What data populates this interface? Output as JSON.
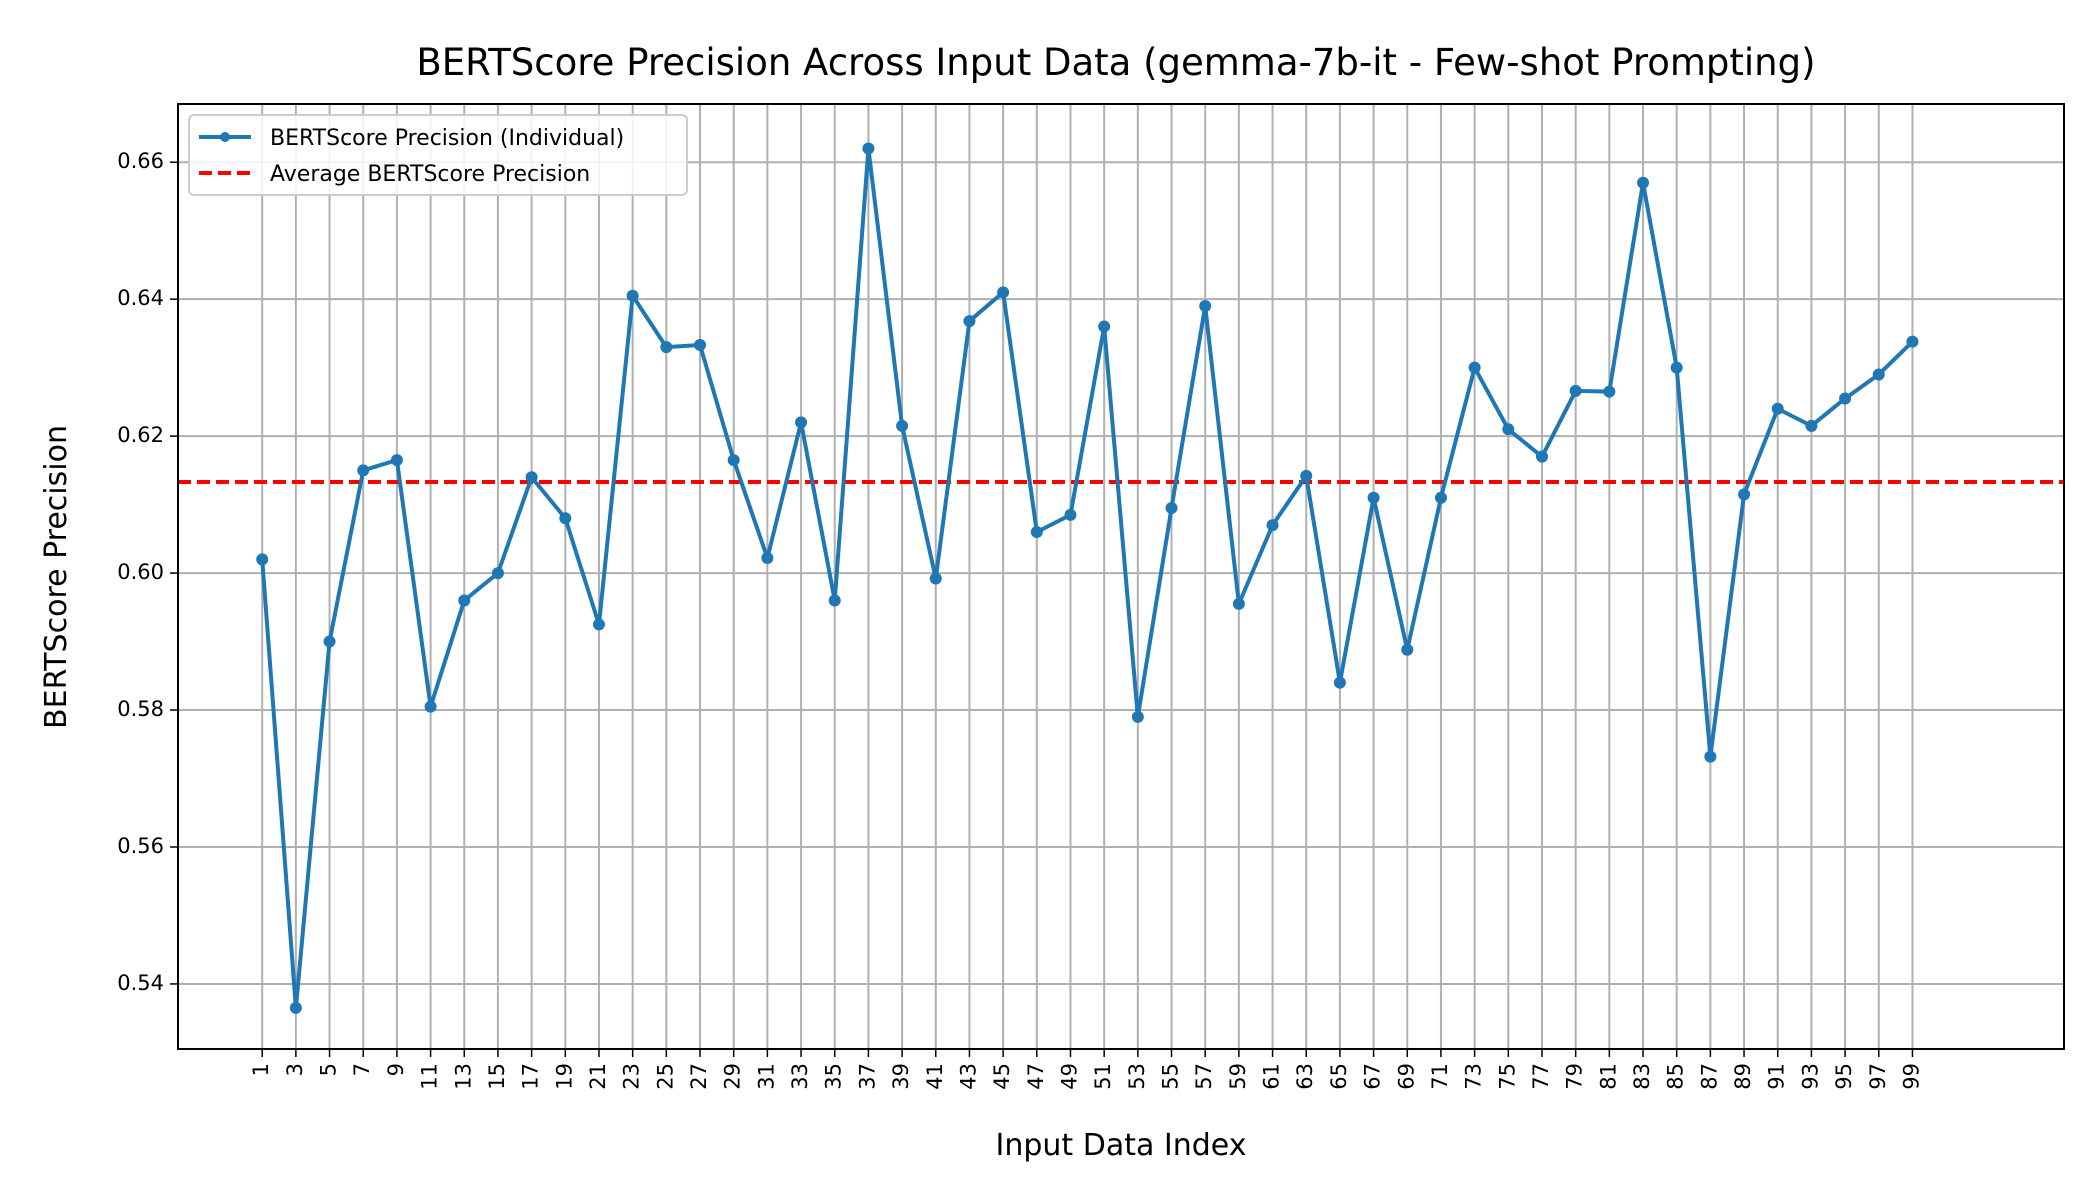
{
  "chart_data": {
    "type": "line",
    "title": "BERTScore Precision Across Input Data (gemma-7b-it - Few-shot Prompting)",
    "xlabel": "Input Data Index",
    "ylabel": "BERTScore Precision",
    "x": [
      1,
      3,
      5,
      7,
      9,
      11,
      13,
      15,
      17,
      19,
      21,
      23,
      25,
      27,
      29,
      31,
      33,
      35,
      37,
      39,
      41,
      43,
      45,
      47,
      49,
      51,
      53,
      55,
      57,
      59,
      61,
      63,
      65,
      67,
      69,
      71,
      73,
      75,
      77,
      79,
      81,
      83,
      85,
      87,
      89,
      91,
      93,
      95,
      97,
      99
    ],
    "xticks": [
      "1",
      "3",
      "5",
      "7",
      "9",
      "11",
      "13",
      "15",
      "17",
      "19",
      "21",
      "23",
      "25",
      "27",
      "29",
      "31",
      "33",
      "35",
      "37",
      "39",
      "41",
      "43",
      "45",
      "47",
      "49",
      "51",
      "53",
      "55",
      "57",
      "59",
      "61",
      "63",
      "65",
      "67",
      "69",
      "71",
      "73",
      "75",
      "77",
      "79",
      "81",
      "83",
      "85",
      "87",
      "89",
      "91",
      "93",
      "95",
      "97",
      "99"
    ],
    "yticks": [
      "0.54",
      "0.56",
      "0.58",
      "0.60",
      "0.62",
      "0.64",
      "0.66"
    ],
    "xlim": [
      -4,
      108
    ],
    "ylim": [
      0.5305,
      0.6685
    ],
    "grid": true,
    "legend_position": "upper-left",
    "series": [
      {
        "name": "BERTScore Precision (Individual)",
        "color": "#1f77b4",
        "style": "solid-with-markers",
        "values": [
          0.602,
          0.5365,
          0.59,
          0.615,
          0.6165,
          0.5805,
          0.596,
          0.6,
          0.614,
          0.608,
          0.5925,
          0.6405,
          0.633,
          0.6333,
          0.6165,
          0.6022,
          0.622,
          0.596,
          0.662,
          0.6215,
          0.5992,
          0.6368,
          0.641,
          0.606,
          0.6085,
          0.636,
          0.579,
          0.6095,
          0.639,
          0.5955,
          0.607,
          0.6142,
          0.584,
          0.611,
          0.5888,
          0.611,
          0.63,
          0.621,
          0.617,
          0.6266,
          0.6265,
          0.657,
          0.63,
          0.5732,
          0.6115,
          0.624,
          0.6215,
          0.6255,
          0.629,
          0.6338
        ]
      },
      {
        "name": "Average BERTScore Precision",
        "color": "#ff0000",
        "style": "dashed",
        "value": 0.6133
      }
    ]
  }
}
